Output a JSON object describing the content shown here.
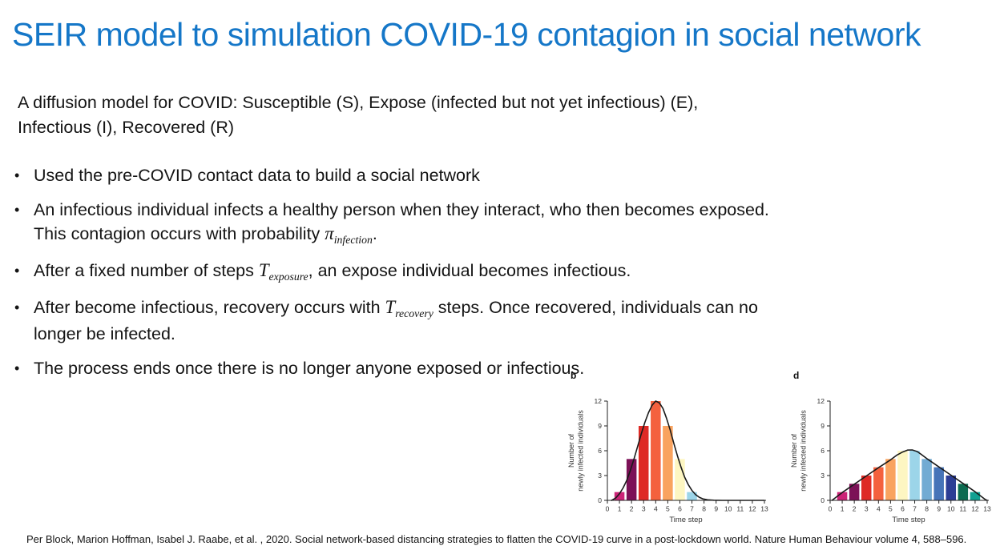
{
  "theme": {
    "title_color": "#1577C8",
    "text_color": "#141414",
    "background": "#ffffff"
  },
  "title": "SEIR model to simulation COVID-19 contagion in social network",
  "intro": {
    "lines": [
      "A diffusion model for COVID: Susceptible (S), Expose (infected but not yet infectious) (E),",
      "Infectious (I), Recovered (R)"
    ]
  },
  "bullet_char": "•",
  "bullets": [
    {
      "lines": [
        [
          {
            "text": "Used the pre-COVID contact data to build a social network"
          }
        ]
      ]
    },
    {
      "lines": [
        [
          {
            "text": "An infectious individual infects a healthy person when they interact, who then becomes exposed."
          }
        ],
        [
          {
            "text": "This contagion occurs with probability "
          },
          {
            "math": "π",
            "sub": "infection"
          },
          {
            "text": "."
          }
        ]
      ]
    },
    {
      "lines": [
        [
          {
            "text": "After a fixed number of steps "
          },
          {
            "math": "T",
            "sub": "exposure"
          },
          {
            "text": ", an expose individual becomes infectious."
          }
        ]
      ]
    },
    {
      "lines": [
        [
          {
            "text": "After become infectious, recovery occurs with "
          },
          {
            "math": "T",
            "sub": "recovery"
          },
          {
            "text": " steps. Once recovered, individuals can no"
          }
        ],
        [
          {
            "text": "longer be infected."
          }
        ]
      ]
    },
    {
      "lines": [
        [
          {
            "text": "The process ends once there is no longer anyone exposed or infectious."
          }
        ]
      ]
    }
  ],
  "citation": "Per Block, Marion Hoffman, Isabel J. Raabe, et al. , 2020. Social network-based distancing strategies to flatten the COVID-19 curve in a post-lockdown world.  Nature Human Behaviour volume 4, 588–596.",
  "chart_data": [
    {
      "type": "bar",
      "panel_label": "b",
      "x": [
        1,
        2,
        3,
        4,
        5,
        6,
        7
      ],
      "values": [
        1,
        5,
        9,
        12,
        9,
        5,
        1
      ],
      "bar_colors": [
        "#CC2377",
        "#7C1157",
        "#DE2A25",
        "#F4613E",
        "#F9A35F",
        "#FDF6C2",
        "#9CD5E9"
      ],
      "curve": [
        [
          0.35,
          0
        ],
        [
          0.7,
          0.3
        ],
        [
          1,
          0.8
        ],
        [
          1.3,
          1.5
        ],
        [
          1.6,
          2.4
        ],
        [
          1.9,
          3.6
        ],
        [
          2.2,
          5.0
        ],
        [
          2.5,
          6.5
        ],
        [
          2.8,
          8.0
        ],
        [
          3.1,
          9.4
        ],
        [
          3.4,
          10.6
        ],
        [
          3.7,
          11.5
        ],
        [
          4,
          12
        ],
        [
          4.3,
          11.8
        ],
        [
          4.6,
          11.1
        ],
        [
          4.9,
          9.9
        ],
        [
          5.2,
          8.5
        ],
        [
          5.5,
          6.9
        ],
        [
          5.8,
          5.4
        ],
        [
          6.1,
          4.0
        ],
        [
          6.4,
          2.8
        ],
        [
          6.7,
          1.9
        ],
        [
          7,
          1.2
        ],
        [
          7.3,
          0.7
        ],
        [
          7.6,
          0.38
        ],
        [
          7.9,
          0.18
        ],
        [
          8.3,
          0.07
        ],
        [
          8.8,
          0.02
        ],
        [
          9.5,
          0
        ],
        [
          13,
          0
        ]
      ],
      "curve_color": "#1a1a1a",
      "xlabel": "Time step",
      "ylabel_lines": [
        "Number of",
        "newly infected individuals"
      ],
      "x_ticks": [
        0,
        1,
        2,
        3,
        4,
        5,
        6,
        7,
        8,
        9,
        10,
        11,
        12,
        13
      ],
      "y_ticks": [
        0,
        3,
        6,
        9,
        12
      ],
      "xlim": [
        0,
        13
      ],
      "ylim": [
        0,
        12
      ],
      "grid": false,
      "legend": false
    },
    {
      "type": "bar",
      "panel_label": "d",
      "x": [
        1,
        2,
        3,
        4,
        5,
        6,
        7,
        8,
        9,
        10,
        11,
        12
      ],
      "values": [
        1,
        2,
        3,
        4,
        5,
        6,
        6,
        5,
        4,
        3,
        2,
        1
      ],
      "bar_colors": [
        "#CC2377",
        "#7C1157",
        "#DE2A25",
        "#F4613E",
        "#F9A35F",
        "#FDF6C2",
        "#9CD5E9",
        "#72ABD3",
        "#4674B8",
        "#2C3D95",
        "#0C6B50",
        "#11A192"
      ],
      "curve": [
        [
          0.15,
          0
        ],
        [
          1,
          0.95
        ],
        [
          2,
          1.95
        ],
        [
          3,
          2.95
        ],
        [
          4,
          3.95
        ],
        [
          5,
          4.9
        ],
        [
          5.5,
          5.45
        ],
        [
          6,
          5.85
        ],
        [
          6.4,
          6.08
        ],
        [
          6.8,
          6.1
        ],
        [
          7.2,
          5.9
        ],
        [
          7.6,
          5.5
        ],
        [
          8,
          5.05
        ],
        [
          9,
          4.05
        ],
        [
          10,
          3.05
        ],
        [
          11,
          2.05
        ],
        [
          12,
          1.05
        ],
        [
          12.85,
          0.1
        ],
        [
          13,
          0
        ]
      ],
      "curve_color": "#1a1a1a",
      "xlabel": "Time step",
      "ylabel_lines": [
        "Number of",
        "newly infected individuals"
      ],
      "x_ticks": [
        0,
        1,
        2,
        3,
        4,
        5,
        6,
        7,
        8,
        9,
        10,
        11,
        12,
        13
      ],
      "y_ticks": [
        0,
        3,
        6,
        9,
        12
      ],
      "xlim": [
        0,
        13
      ],
      "ylim": [
        0,
        12
      ],
      "grid": false,
      "legend": false
    }
  ]
}
